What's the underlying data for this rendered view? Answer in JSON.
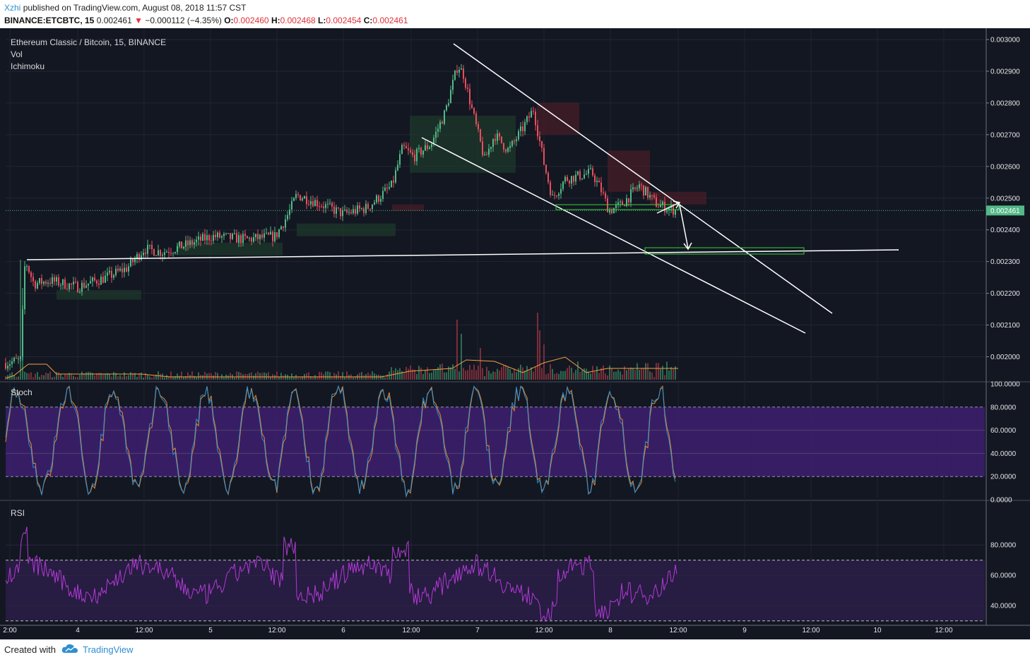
{
  "header": {
    "author": "Xzhi",
    "published": "published on TradingView.com, August 08, 2018 11:57 CST",
    "symbol": "BINANCE:ETCBTC, 15",
    "last": "0.002461",
    "change": "−0.000112 (−4.35%)",
    "o_label": "O:",
    "o_value": "0.002460",
    "h_label": "H:",
    "h_value": "0.002468",
    "l_label": "L:",
    "l_value": "0.002454",
    "c_label": "C:",
    "c_value": "0.002461"
  },
  "legend": {
    "title": "Ethereum Classic / Bitcoin, 15, BINANCE",
    "vol": "Vol",
    "ichimoku": "Ichimoku"
  },
  "panes": {
    "stoch_label": "Stoch",
    "rsi_label": "RSI"
  },
  "price_axis": [
    "0.003000",
    "0.002900",
    "0.002800",
    "0.002700",
    "0.002600",
    "0.002500",
    "0.002400",
    "0.002300",
    "0.002200",
    "0.002100",
    "0.002000"
  ],
  "current_price_tag": "0.002461",
  "stoch_axis": [
    "100.0000",
    "80.0000",
    "60.0000",
    "40.0000",
    "20.0000",
    "0.0000"
  ],
  "rsi_axis": [
    "80.0000",
    "60.0000",
    "40.0000"
  ],
  "time_axis": [
    "2:00",
    "4",
    "12:00",
    "5",
    "12:00",
    "6",
    "12:00",
    "7",
    "12:00",
    "8",
    "12:00",
    "9",
    "12:00",
    "10",
    "12:00"
  ],
  "footer": {
    "created_with": "Created with",
    "brand": "TradingView"
  },
  "colors": {
    "background": "#131722",
    "up": "#53b987",
    "down": "#eb4d5c",
    "drawings": "#ffffff",
    "box": "#3ccc3c",
    "stoch_k": "#2e8fd1",
    "stoch_d": "#f08a24",
    "rsi": "#b13ad6",
    "band": "#3c1f6b"
  }
}
